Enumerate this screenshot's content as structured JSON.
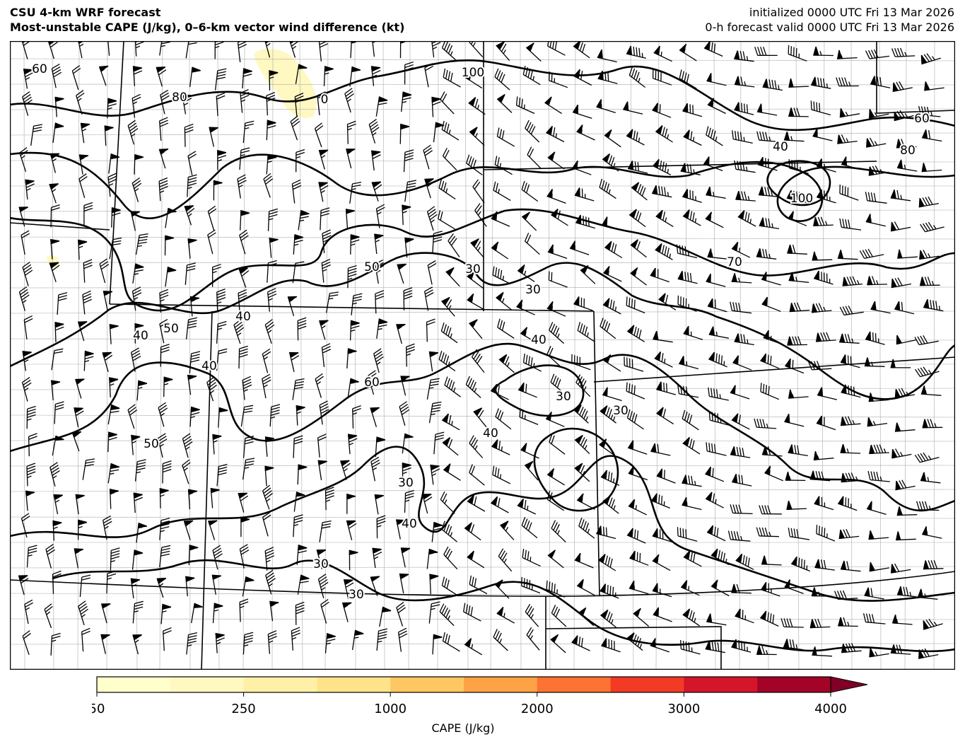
{
  "header": {
    "title_line1": "CSU 4-km WRF forecast",
    "title_line2": "Most-unstable CAPE (J/kg), 0–6-km vector wind difference (kt)",
    "init_line": "initialized 0000 UTC Fri 13 Mar 2026",
    "valid_line": "0-h forecast valid 0000 UTC Fri 13 Mar 2026"
  },
  "map": {
    "shading_field": "Most-unstable CAPE (J/kg)",
    "contour_field": "0–6-km vector wind difference (kt)",
    "contour_labels": [
      "60",
      "80",
      "100",
      "0",
      "80",
      "40",
      "100",
      "60",
      "50",
      "30",
      "30",
      "40",
      "50",
      "40",
      "40",
      "60",
      "40",
      "30",
      "30",
      "40",
      "50",
      "30",
      "40",
      "30",
      "30",
      "70"
    ],
    "contour_color": "#000000",
    "barb_color": "#000000",
    "border_color": "#000000",
    "county_color": "#999999"
  },
  "colorbar": {
    "label": "CAPE (J/kg)",
    "tick_labels": [
      "50",
      "250",
      "1000",
      "2000",
      "3000",
      "4000"
    ],
    "boundaries": [
      50,
      100,
      250,
      500,
      1000,
      1500,
      2000,
      2500,
      3000,
      3500,
      4000
    ],
    "colors": [
      "#ffffcc",
      "#fff8c0",
      "#fff0a8",
      "#fee38b",
      "#fec761",
      "#fda245",
      "#fd7334",
      "#f23a25",
      "#d5152a",
      "#a40328"
    ],
    "extend_color": "#800026",
    "extend": "max"
  }
}
